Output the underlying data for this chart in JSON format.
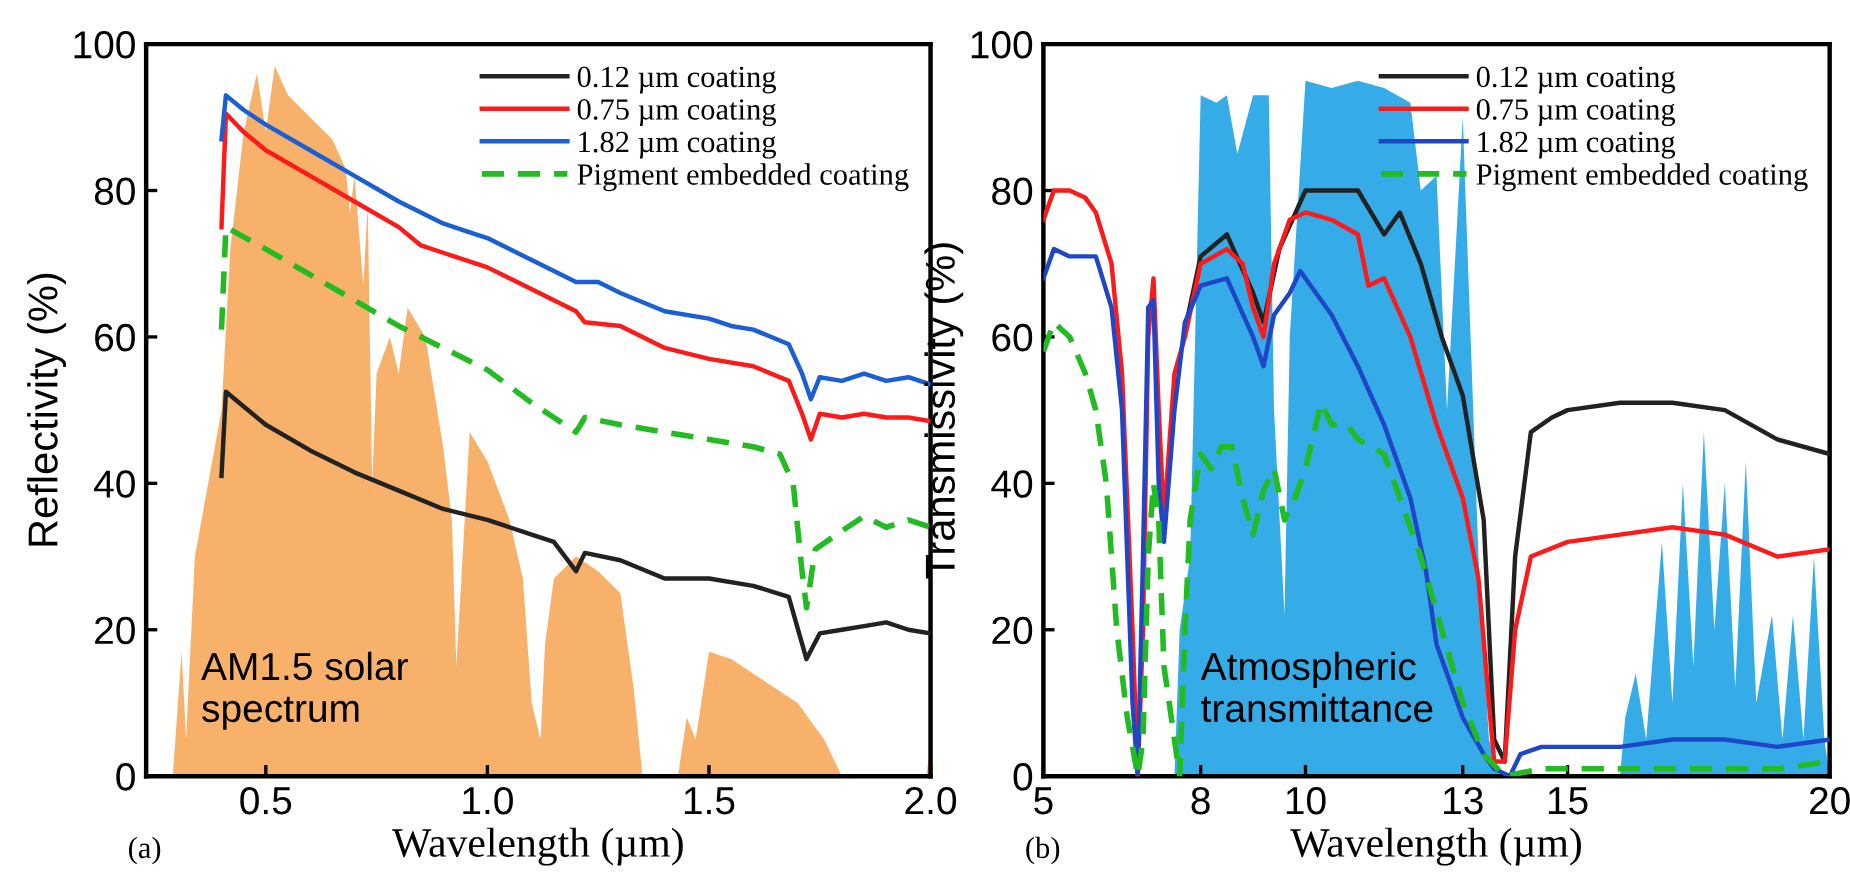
{
  "chart_data": [
    {
      "type": "line",
      "xlabel": "Wavelength (µm)",
      "ylabel": "Reflectivity (%)",
      "xlim": [
        0.23,
        2.0
      ],
      "ylim": [
        0,
        100
      ],
      "xticks": [
        {
          "value": 0.5,
          "label": "0.5"
        },
        {
          "value": 1.0,
          "label": "1.0"
        },
        {
          "value": 1.5,
          "label": "1.5"
        },
        {
          "value": 2.0,
          "label": "2.0"
        }
      ],
      "yticks": [
        0,
        20,
        40,
        60,
        80,
        100
      ],
      "grid": false,
      "legend": "top right",
      "annotations": [
        "AM1.5 solar\nspectrum",
        "(a)"
      ],
      "series": [
        {
          "type": "area",
          "color": "#f7a85a",
          "x": [
            0.29,
            0.31,
            0.32,
            0.34,
            0.37,
            0.4,
            0.42,
            0.45,
            0.48,
            0.5,
            0.52,
            0.55,
            0.6,
            0.65,
            0.68,
            0.69,
            0.7,
            0.72,
            0.73,
            0.74,
            0.75,
            0.78,
            0.8,
            0.82,
            0.86,
            0.9,
            0.92,
            0.93,
            0.96,
            1.0,
            1.05,
            1.08,
            1.1,
            1.12,
            1.13,
            1.15,
            1.2,
            1.25,
            1.3,
            1.33,
            1.35,
            1.43,
            1.45,
            1.47,
            1.5,
            1.55,
            1.6,
            1.7,
            1.76,
            1.8,
            1.99,
            2.0
          ],
          "values": [
            0,
            17,
            5,
            30,
            40,
            50,
            72,
            88,
            96,
            88,
            97,
            93,
            90,
            87,
            83,
            77,
            82,
            67,
            78,
            40,
            55,
            60,
            55,
            64,
            60,
            45,
            35,
            15,
            47,
            43,
            35,
            27,
            10,
            5,
            18,
            27,
            30,
            28,
            25,
            12,
            0,
            0,
            8,
            5,
            17,
            16,
            14,
            10,
            5,
            0,
            0,
            4
          ]
        },
        {
          "name": "0.12 µm coating",
          "color": "#222222",
          "line_style": "solid",
          "x": [
            0.4,
            0.41,
            0.45,
            0.5,
            0.6,
            0.7,
            0.8,
            0.9,
            1.0,
            1.1,
            1.15,
            1.2,
            1.22,
            1.3,
            1.4,
            1.5,
            1.6,
            1.68,
            1.72,
            1.75,
            1.8,
            1.85,
            1.9,
            1.95,
            2.0
          ],
          "values": [
            41,
            52.5,
            50.5,
            48,
            44.5,
            41.5,
            39,
            36.5,
            35,
            33,
            32,
            28,
            30.5,
            29.5,
            27,
            27,
            26,
            24.5,
            16,
            19.5,
            20,
            20.5,
            21,
            20,
            19.5
          ]
        },
        {
          "name": "0.75 µm coating",
          "color": "#ff1a1a",
          "line_style": "solid",
          "x": [
            0.4,
            0.41,
            0.45,
            0.5,
            0.6,
            0.7,
            0.8,
            0.85,
            0.9,
            1.0,
            1.1,
            1.2,
            1.22,
            1.3,
            1.4,
            1.5,
            1.6,
            1.68,
            1.71,
            1.73,
            1.75,
            1.8,
            1.85,
            1.9,
            1.95,
            2.0
          ],
          "values": [
            75,
            90.5,
            88,
            85.5,
            82,
            78.5,
            75,
            72.5,
            71.5,
            69.5,
            66.5,
            63.5,
            62,
            61.5,
            58.5,
            57,
            56,
            54,
            49.5,
            46,
            49.5,
            49,
            49.5,
            49,
            49,
            48.5
          ]
        },
        {
          "name": "1.82 µm coating",
          "color": "#1a5fd6",
          "line_style": "solid",
          "x": [
            0.4,
            0.41,
            0.45,
            0.5,
            0.6,
            0.7,
            0.8,
            0.9,
            0.95,
            1.0,
            1.1,
            1.2,
            1.25,
            1.3,
            1.4,
            1.5,
            1.55,
            1.6,
            1.68,
            1.71,
            1.73,
            1.75,
            1.8,
            1.85,
            1.9,
            1.95,
            2.0
          ],
          "values": [
            87,
            93,
            91,
            89,
            85.5,
            82,
            78.5,
            75.5,
            74.5,
            73.5,
            70.5,
            67.5,
            67.5,
            66,
            63.5,
            62.5,
            61.5,
            61,
            59,
            55,
            51.5,
            54.5,
            54,
            55,
            54,
            54.5,
            53.5
          ]
        },
        {
          "name": "Pigment embedded coating",
          "color": "#22bb22",
          "line_style": "dashed",
          "x": [
            0.4,
            0.41,
            0.5,
            0.6,
            0.7,
            0.8,
            0.9,
            1.0,
            1.1,
            1.15,
            1.2,
            1.22,
            1.3,
            1.4,
            1.5,
            1.6,
            1.66,
            1.69,
            1.71,
            1.72,
            1.74,
            1.8,
            1.85,
            1.9,
            1.95,
            2.0
          ],
          "values": [
            61,
            75,
            72,
            68.5,
            65,
            61.5,
            58.5,
            55.5,
            51,
            49,
            47,
            49,
            48,
            47,
            46,
            45,
            44,
            40,
            28,
            23,
            31,
            33.5,
            35.5,
            34,
            35,
            34
          ]
        }
      ]
    },
    {
      "type": "line",
      "xlabel": "Wavelength (µm)",
      "ylabel": "Transmissivity (%)",
      "xlim": [
        5,
        20
      ],
      "ylim": [
        0,
        100
      ],
      "xticks": [
        5,
        8,
        10,
        13,
        15,
        20
      ],
      "yticks": [
        0,
        20,
        40,
        60,
        80,
        100
      ],
      "grid": false,
      "legend": "top right",
      "annotations": [
        "Atmospheric\ntransmittance",
        "(b)"
      ],
      "series": [
        {
          "type": "area",
          "color": "#1fa3e6",
          "x": [
            7.5,
            7.6,
            7.8,
            8.0,
            8.3,
            8.5,
            8.7,
            9.0,
            9.3,
            9.4,
            9.6,
            9.7,
            10.0,
            10.5,
            11.0,
            11.5,
            12.0,
            12.2,
            12.5,
            12.7,
            13.0,
            13.1,
            13.3,
            13.5,
            13.7,
            16.0,
            16.1,
            16.3,
            16.5,
            16.8,
            17.0,
            17.2,
            17.4,
            17.6,
            17.8,
            18.0,
            18.2,
            18.4,
            18.6,
            18.9,
            19.1,
            19.3,
            19.5,
            19.7,
            19.9,
            20.0
          ],
          "values": [
            0,
            20,
            30,
            93,
            92,
            93,
            85,
            93,
            93,
            50,
            22,
            60,
            95,
            94,
            95,
            94,
            92,
            80,
            82,
            50,
            90,
            70,
            30,
            5,
            0,
            0,
            8,
            14,
            5,
            32,
            10,
            40,
            15,
            47,
            20,
            40,
            12,
            43,
            10,
            22,
            5,
            22,
            5,
            30,
            5,
            0
          ]
        },
        {
          "name": "0.12 µm coating",
          "color": "#222222",
          "line_style": "solid",
          "x": [
            7.7,
            8.0,
            8.5,
            9.0,
            9.2,
            9.5,
            10.0,
            10.5,
            11.0,
            11.5,
            11.8,
            12.2,
            12.6,
            13.0,
            13.4,
            13.6,
            13.8,
            14.0,
            14.3,
            14.7,
            15.0,
            16.0,
            17.0,
            18.0,
            19.0,
            20.0
          ],
          "values": [
            61,
            71,
            74,
            66,
            62,
            72,
            80,
            80,
            80,
            74,
            77,
            70,
            60,
            52,
            35,
            5,
            2,
            30,
            47,
            49,
            50,
            51,
            51,
            50,
            46,
            44
          ]
        },
        {
          "name": "0.75 µm coating",
          "color": "#ff1a1a",
          "line_style": "solid",
          "x": [
            5.0,
            5.2,
            5.5,
            5.8,
            6.0,
            6.3,
            6.5,
            6.7,
            6.8,
            6.9,
            7.0,
            7.1,
            7.2,
            7.3,
            7.5,
            7.7,
            8.0,
            8.5,
            8.8,
            9.0,
            9.2,
            9.4,
            9.7,
            10.0,
            10.5,
            11.0,
            11.2,
            11.5,
            12.0,
            12.5,
            13.0,
            13.3,
            13.5,
            13.6,
            13.8,
            14.0,
            14.3,
            15.0,
            16.0,
            17.0,
            18.0,
            19.0,
            20.0
          ],
          "values": [
            76,
            80,
            80,
            79,
            77,
            70,
            55,
            20,
            0,
            20,
            60,
            68,
            50,
            35,
            55,
            60,
            70,
            72,
            70,
            64,
            60,
            70,
            76,
            77,
            76,
            74,
            67,
            68,
            60,
            48,
            38,
            27,
            10,
            2,
            2,
            20,
            30,
            32,
            33,
            34,
            33,
            30,
            31
          ]
        },
        {
          "name": "1.82 µm coating",
          "color": "#2046c8",
          "line_style": "solid",
          "x": [
            5.0,
            5.2,
            5.5,
            6.0,
            6.3,
            6.5,
            6.7,
            6.8,
            6.9,
            7.0,
            7.1,
            7.2,
            7.3,
            7.5,
            7.7,
            8.0,
            8.5,
            9.0,
            9.2,
            9.4,
            9.7,
            9.9,
            10.1,
            10.5,
            11.0,
            11.5,
            12.0,
            12.3,
            12.5,
            13.0,
            13.4,
            13.6,
            13.9,
            14.1,
            14.5,
            15.0,
            16.0,
            17.0,
            18.0,
            19.0,
            20.0
          ],
          "values": [
            68,
            72,
            71,
            71,
            64,
            50,
            10,
            0,
            30,
            64,
            65,
            40,
            32,
            50,
            62,
            67,
            68,
            60,
            56,
            63,
            66,
            69,
            67,
            63,
            56,
            48,
            38,
            28,
            18,
            8,
            3,
            1,
            0,
            3,
            4,
            4,
            4,
            5,
            5,
            4,
            5
          ]
        },
        {
          "name": "Pigment embedded coating",
          "color": "#22bb22",
          "line_style": "dashed",
          "x": [
            5.0,
            5.2,
            5.5,
            5.8,
            6.0,
            6.2,
            6.4,
            6.6,
            6.8,
            6.9,
            7.0,
            7.1,
            7.2,
            7.3,
            7.5,
            7.6,
            7.7,
            7.8,
            8.0,
            8.2,
            8.4,
            8.6,
            8.8,
            9.0,
            9.2,
            9.4,
            9.6,
            9.8,
            10.0,
            10.3,
            10.5,
            10.8,
            11.0,
            11.5,
            11.8,
            12.2,
            12.6,
            13.0,
            13.4,
            13.8,
            14.5,
            15.0,
            16.0,
            17.0,
            18.0,
            19.0,
            20.0
          ],
          "values": [
            58,
            62,
            60,
            55,
            50,
            40,
            20,
            8,
            0,
            5,
            30,
            40,
            35,
            15,
            5,
            0,
            20,
            35,
            44,
            42,
            45,
            45,
            38,
            33,
            39,
            42,
            35,
            38,
            42,
            51,
            48,
            48,
            46,
            44,
            38,
            30,
            20,
            10,
            3,
            0,
            1,
            1,
            1,
            1,
            1,
            1,
            2
          ]
        }
      ]
    }
  ]
}
